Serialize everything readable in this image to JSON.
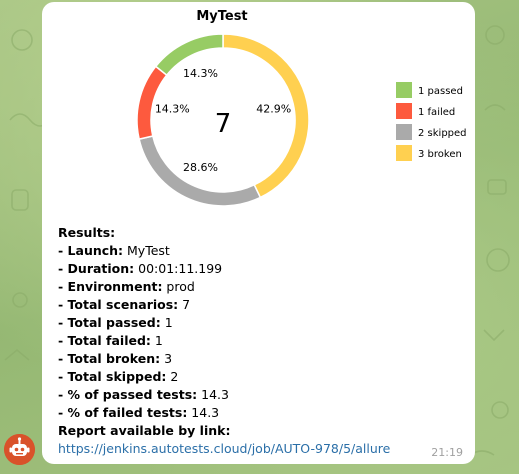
{
  "chat": {
    "time": "21:19",
    "avatar_icon": "robot-icon"
  },
  "chart_data": {
    "type": "pie",
    "title": "MyTest",
    "center_label": "7",
    "categories": [
      "passed",
      "failed",
      "skipped",
      "broken"
    ],
    "values": [
      1,
      1,
      2,
      3
    ],
    "percent_labels": [
      "14.3%",
      "14.3%",
      "28.6%",
      "42.9%"
    ],
    "colors": [
      "#97cc64",
      "#fd5a3e",
      "#aaaaaa",
      "#ffd050"
    ],
    "legend": [
      "1 passed",
      "1 failed",
      "2 skipped",
      "3 broken"
    ],
    "legend_position": "right",
    "donut": true
  },
  "results": {
    "heading": "Results:",
    "rows": [
      {
        "label": " - Launch:",
        "value": " MyTest"
      },
      {
        "label": " - Duration:",
        "value": " 00:01:11.199"
      },
      {
        "label": " - Environment:",
        "value": " prod"
      },
      {
        "label": " - Total scenarios:",
        "value": " 7"
      },
      {
        "label": " - Total passed:",
        "value": " 1"
      },
      {
        "label": " - Total failed:",
        "value": " 1"
      },
      {
        "label": " - Total broken:",
        "value": " 3"
      },
      {
        "label": "  - Total skipped:",
        "value": " 2"
      },
      {
        "label": " - % of passed tests:",
        "value": " 14.3"
      },
      {
        "label": " - % of failed tests:",
        "value": " 14.3"
      }
    ],
    "report_label": " Report available by link:",
    "report_link": "https://jenkins.autotests.cloud/job/AUTO-978/5/allure"
  }
}
